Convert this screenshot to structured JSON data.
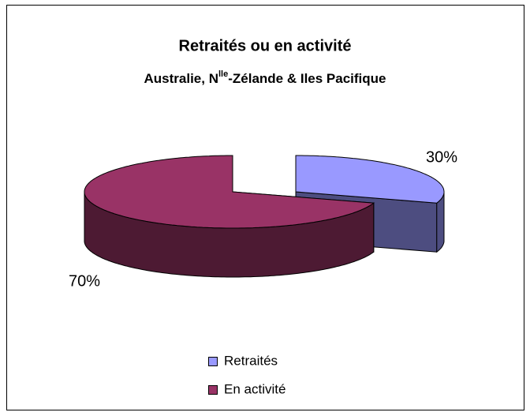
{
  "chart_data": {
    "type": "pie3d",
    "title": "Retraités ou en activité",
    "subtitle": [
      "Australie, N",
      "lle",
      "-Zélande & Iles Pacifique"
    ],
    "categories": [
      "Retraités",
      "En activité"
    ],
    "values": [
      30,
      70
    ],
    "value_labels": [
      "30%",
      "70%"
    ],
    "colors": [
      "#9999ff",
      "#993366"
    ],
    "legend": "bottom"
  }
}
